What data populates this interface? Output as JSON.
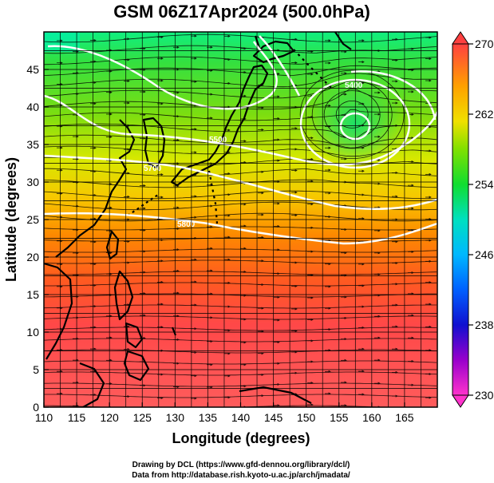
{
  "title": "GSM 06Z17Apr2024 (500.0hPa)",
  "xlabel": "Longitude (degrees)",
  "ylabel": "Latitude  (degrees)",
  "credit": {
    "line1": "Drawing by DCL (https://www.gfd-dennou.org/library/dcl/)",
    "line2": "Data from http://database.rish.kyoto-u.ac.jp/arch/jmadata/"
  },
  "chart_data": {
    "type": "heatmap",
    "title": "GSM 06Z17Apr2024 (500.0hPa)",
    "xlabel": "Longitude (degrees)",
    "ylabel": "Latitude  (degrees)",
    "xlim": [
      110,
      170
    ],
    "ylim": [
      0,
      50
    ],
    "xticks": [
      "110",
      "115",
      "120",
      "125",
      "130",
      "135",
      "140",
      "145",
      "150",
      "155",
      "160",
      "165"
    ],
    "yticks": [
      "0",
      "5",
      "10",
      "15",
      "20",
      "25",
      "30",
      "35",
      "40",
      "45"
    ],
    "colorbar": {
      "min": 230,
      "max": 270,
      "ticks": [
        "230",
        "238",
        "246",
        "254",
        "262",
        "270"
      ]
    },
    "contours": [
      {
        "label": "5400"
      },
      {
        "label": "5500"
      },
      {
        "label": "5700"
      },
      {
        "label": "5800"
      }
    ],
    "grid": true
  },
  "colors": {
    "cold": "#ff00ff",
    "blue": "#0000ff",
    "cyan": "#00ffff",
    "green": "#33dd00",
    "yellow": "#ffee00",
    "orange": "#ff8000",
    "warm": "#ff5050"
  }
}
